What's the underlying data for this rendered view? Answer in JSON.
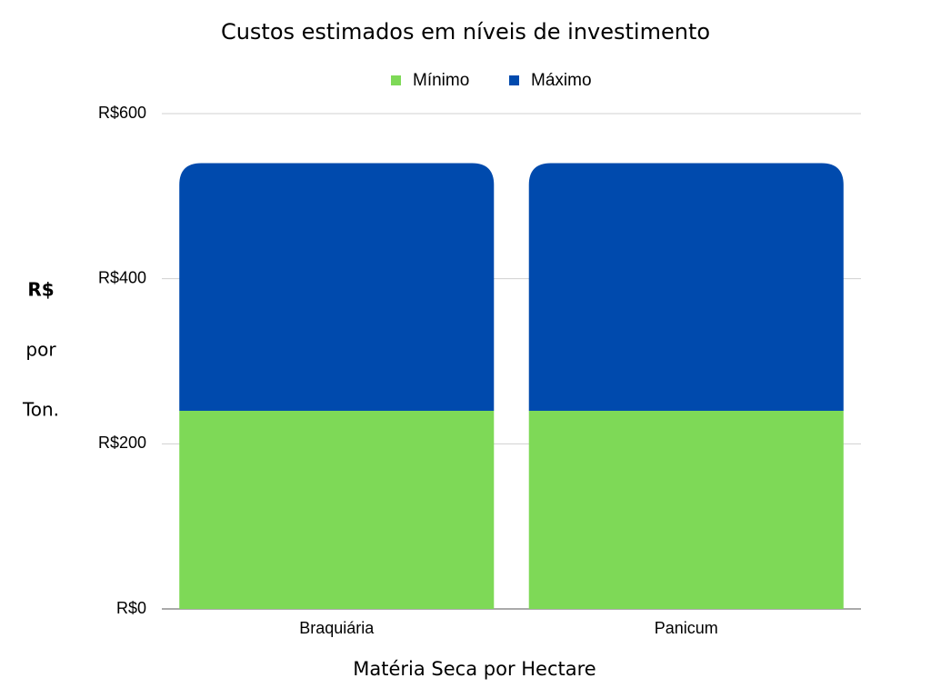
{
  "chart_data": {
    "type": "stacked_bar",
    "title": "Custos estimados em níveis de investimento",
    "xlabel": "Matéria Seca por Hectare",
    "ylabel": [
      "R$",
      "por",
      "Ton."
    ],
    "categories": [
      "Braquiária",
      "Panicum"
    ],
    "series": [
      {
        "name": "Mínimo",
        "color": "#7ed957",
        "values": [
          240,
          240
        ]
      },
      {
        "name": "Máximo",
        "color": "#004aad",
        "values": [
          300,
          300
        ]
      }
    ],
    "ylim": [
      0,
      600
    ],
    "yticks": [
      {
        "value": 0,
        "label": "R$0"
      },
      {
        "value": 200,
        "label": "R$200"
      },
      {
        "value": 400,
        "label": "R$400"
      },
      {
        "value": 600,
        "label": "R$600"
      }
    ],
    "grid": true,
    "legend": "top"
  }
}
